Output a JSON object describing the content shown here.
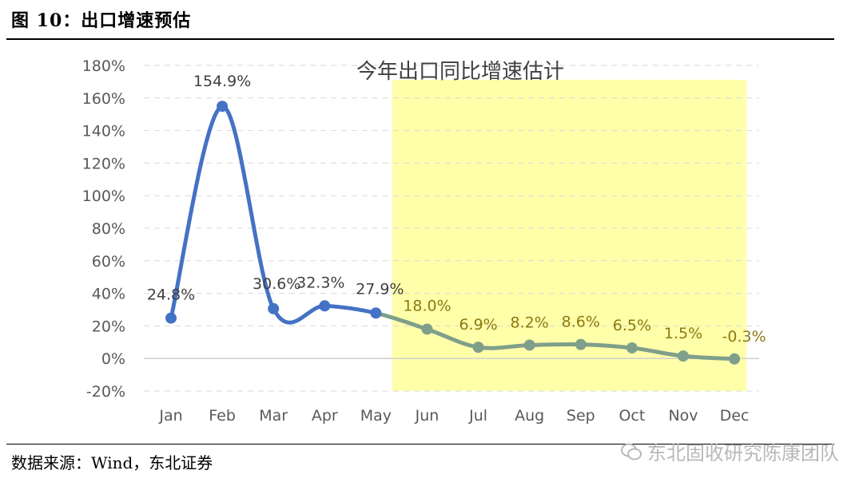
{
  "figure": {
    "title": "图 10：出口增速预估",
    "source": "数据来源：Wind，东北证券",
    "watermark": "东北固收研究陈康团队"
  },
  "chart_data": {
    "type": "line",
    "title": "今年出口同比增速估计",
    "categories": [
      "Jan",
      "Feb",
      "Mar",
      "Apr",
      "May",
      "Jun",
      "Jul",
      "Aug",
      "Sep",
      "Oct",
      "Nov",
      "Dec"
    ],
    "series": [
      {
        "values": [
          24.8,
          154.9,
          30.6,
          32.3,
          27.9,
          18.0,
          6.9,
          8.2,
          8.6,
          6.5,
          1.5,
          -0.3
        ],
        "labels": [
          "24.8%",
          "154.9%",
          "30.6%",
          "32.3%",
          "27.9%",
          "18.0%",
          "6.9%",
          "8.2%",
          "8.6%",
          "6.5%",
          "1.5%",
          "-0.3%"
        ]
      }
    ],
    "actual_through": "May",
    "forecast_region": {
      "from": "Jun",
      "to": "Dec"
    },
    "ylim": [
      -20,
      180
    ],
    "yticks": [
      "-20%",
      "0%",
      "20%",
      "40%",
      "60%",
      "80%",
      "100%",
      "120%",
      "140%",
      "160%",
      "180%"
    ],
    "grid": true,
    "colors": {
      "actual": "#4472C4",
      "forecast": "#7F9F8A",
      "highlight": "#FFFFAA",
      "label_actual": "#404040",
      "label_forecast": "#8C7A10"
    }
  }
}
